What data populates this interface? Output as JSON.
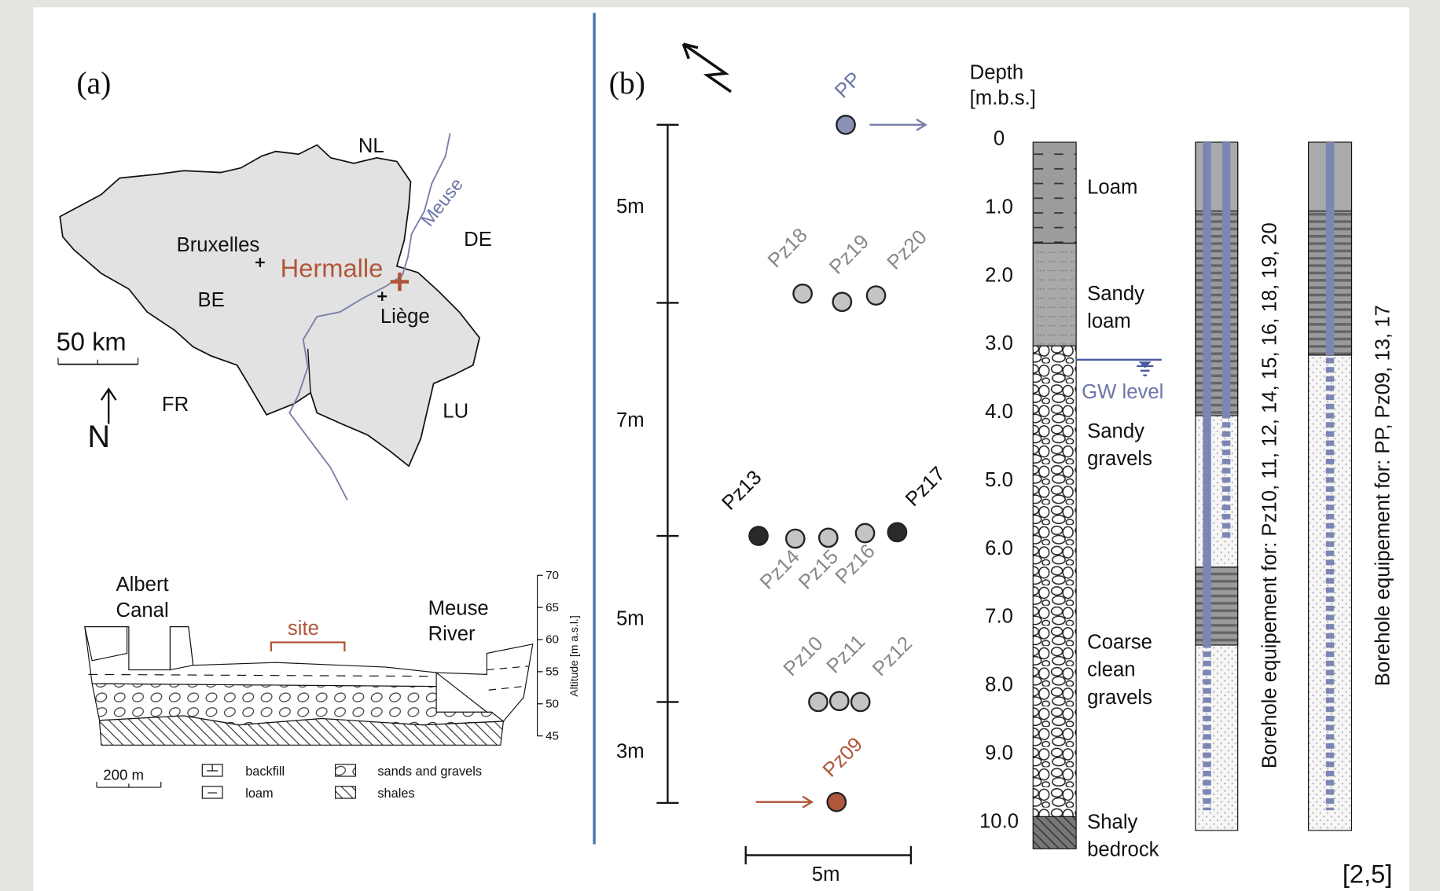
{
  "panel_a": {
    "label": "(a)",
    "map": {
      "countries": [
        "NL",
        "DE",
        "BE",
        "FR",
        "LU"
      ],
      "cities": [
        "Bruxelles",
        "Liège"
      ],
      "site": "Hermalle",
      "river": "Meuse",
      "scale": "50 km",
      "north": "N"
    },
    "cross_section": {
      "canal": [
        "Albert",
        "Canal"
      ],
      "site": "site",
      "river": [
        "Meuse",
        "River"
      ],
      "altitude_ticks": [
        "70",
        "65",
        "60",
        "55",
        "50",
        "45"
      ],
      "altitude_title": "Altitude [m a.s.l.]",
      "scale": "200 m",
      "legend": [
        "backfill",
        "loam",
        "sands and gravels",
        "shales"
      ]
    }
  },
  "panel_b": {
    "label": "(b)",
    "distances": [
      "5m",
      "7m",
      "5m",
      "3m"
    ],
    "scale": "5m",
    "wells": [
      "PP",
      "Pz18",
      "Pz19",
      "Pz20",
      "Pz13",
      "Pz14",
      "Pz15",
      "Pz16",
      "Pz17",
      "Pz10",
      "Pz11",
      "Pz12",
      "Pz09"
    ],
    "depth_title": [
      "Depth",
      "[m.b.s.]"
    ],
    "depth_ticks": [
      "0",
      "1.0",
      "2.0",
      "3.0",
      "4.0",
      "5.0",
      "6.0",
      "7.0",
      "8.0",
      "9.0",
      "10.0"
    ],
    "layers": [
      [
        "Loam"
      ],
      [
        "Sandy",
        "loam"
      ],
      [
        "Sandy",
        "gravels"
      ],
      [
        "Coarse",
        "clean",
        "gravels"
      ],
      [
        "Shaly",
        "bedrock"
      ]
    ],
    "gw_level": "GW level",
    "boreholes": [
      "Borehole equipement for: Pz10, 11, 12, 14, 15, 16, 18, 19, 20",
      "Borehole equipement for: PP, Pz09, 13, 17"
    ]
  },
  "citation": "[2,5]"
}
